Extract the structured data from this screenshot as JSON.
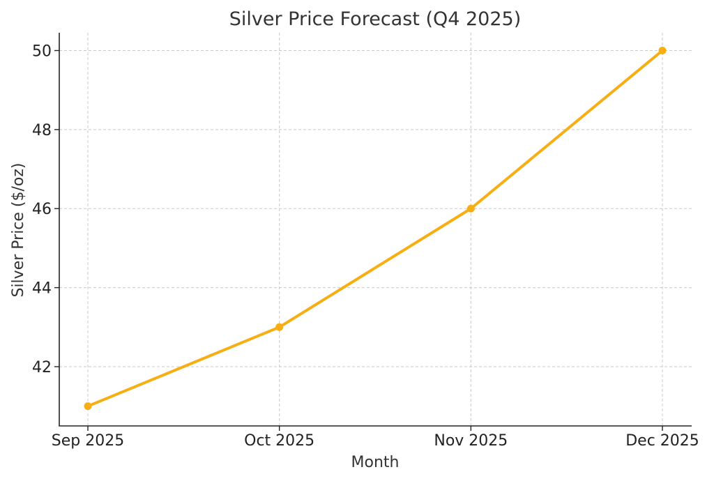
{
  "chart_data": {
    "type": "line",
    "title": "Silver Price Forecast (Q4 2025)",
    "xlabel": "Month",
    "ylabel": "Silver Price ($/oz)",
    "categories": [
      "Sep 2025",
      "Oct 2025",
      "Nov 2025",
      "Dec 2025"
    ],
    "series": [
      {
        "values": [
          41,
          43,
          46,
          50
        ],
        "color": "#F7AE12"
      }
    ],
    "ylim": [
      40.5,
      50.45
    ],
    "yticks": [
      42,
      44,
      46,
      48,
      50
    ],
    "grid": true,
    "grid_style": "dashed",
    "legend": "none"
  }
}
